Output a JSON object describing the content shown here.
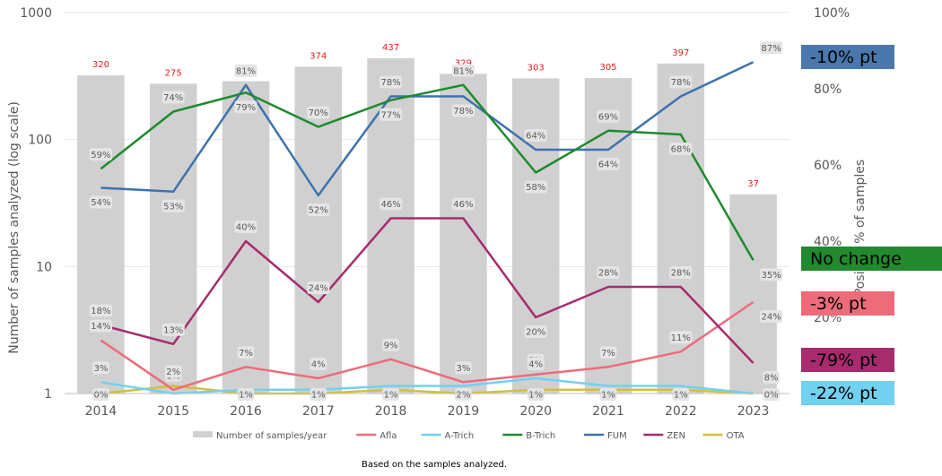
{
  "chart_data": {
    "type": "bar",
    "ylabel": "Number of samples analyzed (log scale)",
    "y2label": "Positive % of samples",
    "note": "Based on the samples analyzed.",
    "categories": [
      "2014",
      "2015",
      "2016",
      "2017",
      "2018",
      "2019",
      "2020",
      "2021",
      "2022",
      "2023"
    ],
    "y_scale": "log",
    "ylim": [
      1,
      1000
    ],
    "y_ticks": [
      "1",
      "10",
      "100",
      "1000"
    ],
    "y2lim": [
      0,
      100
    ],
    "y2_ticks": [
      "20%",
      "40%",
      "60%",
      "80%",
      "100%"
    ],
    "bars": {
      "name": "Number of samples/year",
      "color": "#d0d0d0",
      "values": [
        320,
        275,
        288,
        374,
        437,
        329,
        303,
        305,
        397,
        37
      ],
      "labels": [
        "320",
        "275",
        "288",
        "374",
        "437",
        "329",
        "303",
        "305",
        "397",
        "37"
      ]
    },
    "series": [
      {
        "name": "Afla",
        "color": "#ee6b7a",
        "values": [
          14,
          1,
          7,
          4,
          9,
          3,
          5,
          7,
          11,
          24
        ],
        "labels": [
          "14%",
          "1%",
          "7%",
          "4%",
          "9%",
          "3%",
          "5%",
          "7%",
          "11%",
          "24%"
        ]
      },
      {
        "name": "A-Trich",
        "color": "#72d0f0",
        "values": [
          3,
          0,
          1,
          1,
          2,
          2,
          4,
          2,
          2,
          0
        ],
        "labels": [
          "3%",
          "",
          "1%",
          "1%",
          "2%",
          "2%",
          "4%",
          "2%",
          "2%",
          "0%"
        ]
      },
      {
        "name": "B-Trich",
        "color": "#1e8a2e",
        "values": [
          59,
          74,
          79,
          70,
          77,
          81,
          58,
          69,
          68,
          35
        ],
        "labels": [
          "59%",
          "74%",
          "79%",
          "70%",
          "77%",
          "81%",
          "58%",
          "69%",
          "68%",
          "35%"
        ]
      },
      {
        "name": "FUM",
        "color": "#3d72ad",
        "values": [
          54,
          53,
          81,
          52,
          78,
          78,
          64,
          64,
          78,
          87
        ],
        "labels": [
          "54%",
          "53%",
          "81%",
          "52%",
          "78%",
          "78%",
          "64%",
          "64%",
          "78%",
          "87%"
        ]
      },
      {
        "name": "ZEN",
        "color": "#a62c6e",
        "values": [
          18,
          13,
          40,
          24,
          46,
          46,
          20,
          28,
          28,
          8
        ],
        "labels": [
          "18%",
          "13%",
          "40%",
          "24%",
          "46%",
          "46%",
          "20%",
          "28%",
          "28%",
          "8%"
        ]
      },
      {
        "name": "OTA",
        "color": "#d4bf3c",
        "values": [
          0,
          2,
          0,
          0,
          1,
          0,
          1,
          1,
          1,
          0
        ],
        "labels": [
          "0%",
          "2%",
          "",
          "",
          "1%",
          "",
          "1%",
          "1%",
          "1%",
          ""
        ]
      }
    ],
    "callouts": [
      {
        "text": "-10% pt",
        "series": "FUM",
        "color": "#4a78ad"
      },
      {
        "text": "No change",
        "series": "B-Trich",
        "color": "#22892e"
      },
      {
        "text": "-3% pt",
        "series": "Afla",
        "color": "#ee6b7a"
      },
      {
        "text": "-79% pt",
        "series": "ZEN",
        "color": "#a62c6e"
      },
      {
        "text": "-22% pt",
        "series": "A-Trich",
        "color": "#72d0f0"
      }
    ]
  }
}
